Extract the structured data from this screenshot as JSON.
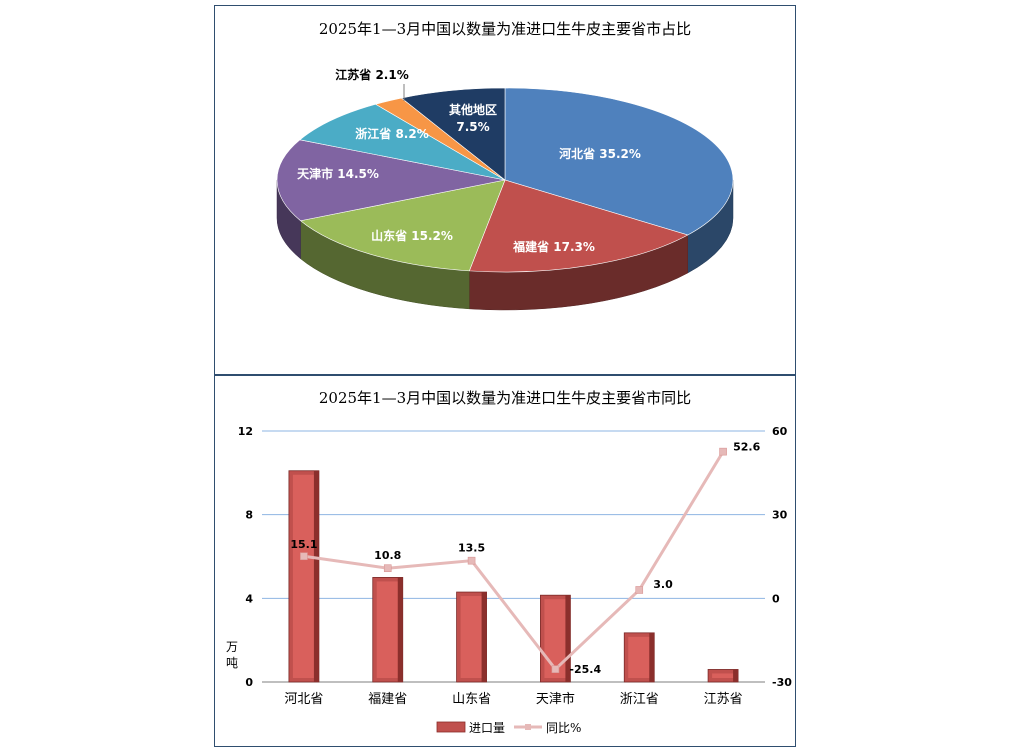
{
  "chart_data": [
    {
      "type": "pie",
      "title": "2025年1—3月中国以数量为准进口生牛皮主要省市占比",
      "slices": [
        {
          "label": "河北省",
          "value": 35.2,
          "color": "#4f81bd"
        },
        {
          "label": "福建省",
          "value": 17.3,
          "color": "#c0504d"
        },
        {
          "label": "山东省",
          "value": 15.2,
          "color": "#9bbb59"
        },
        {
          "label": "天津市",
          "value": 14.5,
          "color": "#8064a2"
        },
        {
          "label": "浙江省",
          "value": 8.2,
          "color": "#4bacc6"
        },
        {
          "label": "江苏省",
          "value": 2.1,
          "color": "#f79646"
        },
        {
          "label": "其他地区",
          "value": 7.5,
          "color": "#1f3c64"
        }
      ],
      "labels": [
        "河北省 35.2%",
        "福建省 17.3%",
        "山东省 15.2%",
        "天津市 14.5%",
        "浙江省 8.2%",
        "江苏省 2.1%",
        "其他地区",
        "7.5%"
      ]
    },
    {
      "type": "bar",
      "title": "2025年1—3月中国以数量为准进口生牛皮主要省市同比",
      "categories": [
        "河北省",
        "福建省",
        "山东省",
        "天津市",
        "浙江省",
        "江苏省"
      ],
      "series": [
        {
          "name": "进口量",
          "type": "bar",
          "axis": "left",
          "values": [
            10.1,
            5.0,
            4.3,
            4.15,
            2.35,
            0.6
          ],
          "color": "#c0504d"
        },
        {
          "name": "同比%",
          "type": "line",
          "axis": "right",
          "values": [
            15.1,
            10.8,
            13.5,
            -25.4,
            3.0,
            52.6
          ],
          "color": "#e6b9b8"
        }
      ],
      "data_labels": [
        "15.1",
        "10.8",
        "13.5",
        "-25.4",
        "3.0",
        "52.6"
      ],
      "ylabel": "万吨",
      "ylim": [
        0,
        12
      ],
      "yticks": [
        "0",
        "4",
        "8",
        "12"
      ],
      "y2lim": [
        -30,
        60
      ],
      "y2ticks": [
        "-30",
        "0",
        "30",
        "60"
      ],
      "grid": true,
      "legend": "bottom"
    }
  ]
}
